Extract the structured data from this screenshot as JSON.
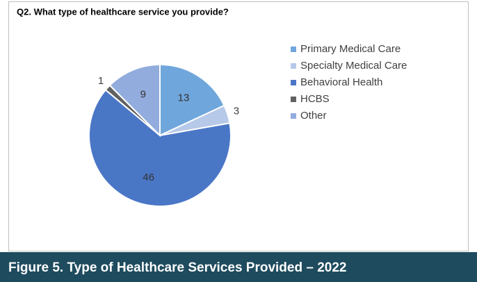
{
  "chart_data": {
    "type": "pie",
    "title": "Q2. What type of healthcare service you provide?",
    "categories": [
      "Primary Medical Care",
      "Specialty Medical Care",
      "Behavioral Health",
      "HCBS",
      "Other"
    ],
    "values": [
      13,
      3,
      46,
      1,
      9
    ],
    "colors": [
      "#6fa6dc",
      "#b7c9e8",
      "#4a76c6",
      "#616161",
      "#91acdd"
    ],
    "legend": "right"
  },
  "caption": "Figure 5. Type of Healthcare Services Provided – 2022"
}
